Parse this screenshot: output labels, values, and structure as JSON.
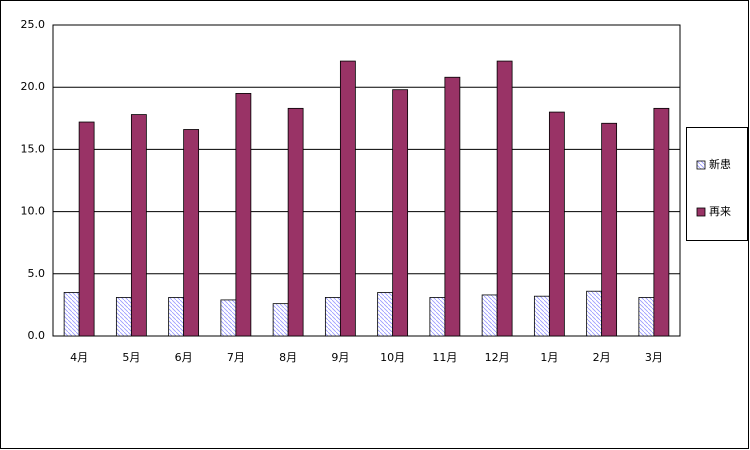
{
  "chart_data": {
    "type": "bar",
    "categories": [
      "4月",
      "5月",
      "6月",
      "7月",
      "8月",
      "9月",
      "10月",
      "11月",
      "12月",
      "1月",
      "2月",
      "3月"
    ],
    "series": [
      {
        "name": "新患",
        "color": "#9999ff",
        "hatch": true,
        "values": [
          3.5,
          3.1,
          3.1,
          2.9,
          2.6,
          3.1,
          3.5,
          3.1,
          3.3,
          3.2,
          3.6,
          3.1
        ]
      },
      {
        "name": "再来",
        "color": "#993366",
        "hatch": false,
        "values": [
          17.2,
          17.8,
          16.6,
          19.5,
          18.3,
          22.1,
          19.8,
          20.8,
          22.1,
          18.0,
          17.1,
          18.3
        ]
      }
    ],
    "ylim": [
      0,
      25
    ],
    "yticks": [
      {
        "value": 0,
        "label": "0.0"
      },
      {
        "value": 5,
        "label": "5.0"
      },
      {
        "value": 10,
        "label": "10.0"
      },
      {
        "value": 15,
        "label": "15.0"
      },
      {
        "value": 20,
        "label": "20.0"
      },
      {
        "value": 25,
        "label": "25.0"
      }
    ],
    "grid": true
  }
}
